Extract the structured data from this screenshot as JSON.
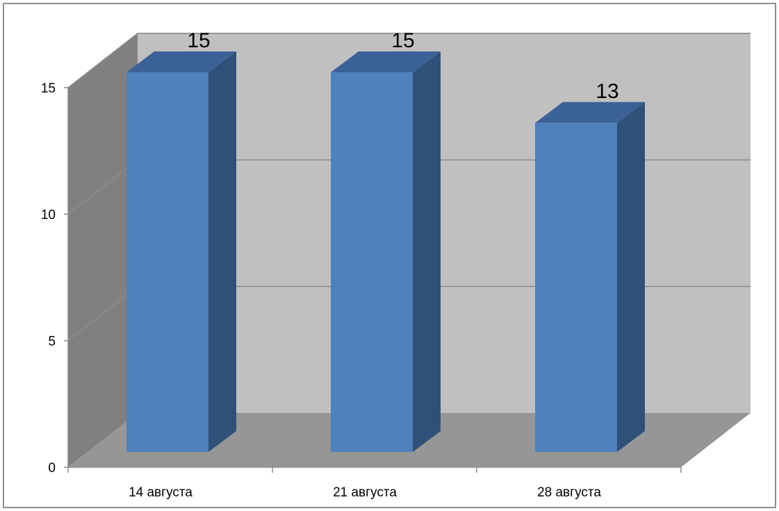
{
  "chart_data": {
    "type": "bar",
    "style": "3d-column",
    "categories": [
      "14 августа",
      "21 августа",
      "28 августа"
    ],
    "values": [
      15,
      15,
      13
    ],
    "data_labels": [
      "15",
      "15",
      "13"
    ],
    "ylim": [
      0,
      15
    ],
    "y_ticks": [
      0,
      5,
      10,
      15
    ],
    "y_tick_labels": [
      "0",
      "5",
      "10",
      "15"
    ],
    "grid": true,
    "legend": "none",
    "colors": {
      "bar_front": "#4f81bd",
      "bar_side": "#2f5179",
      "bar_top": "#3b6297",
      "back_wall": "#c0c0c0",
      "side_wall": "#808080",
      "floor": "#969696",
      "gridline": "#8c8c8c"
    }
  }
}
